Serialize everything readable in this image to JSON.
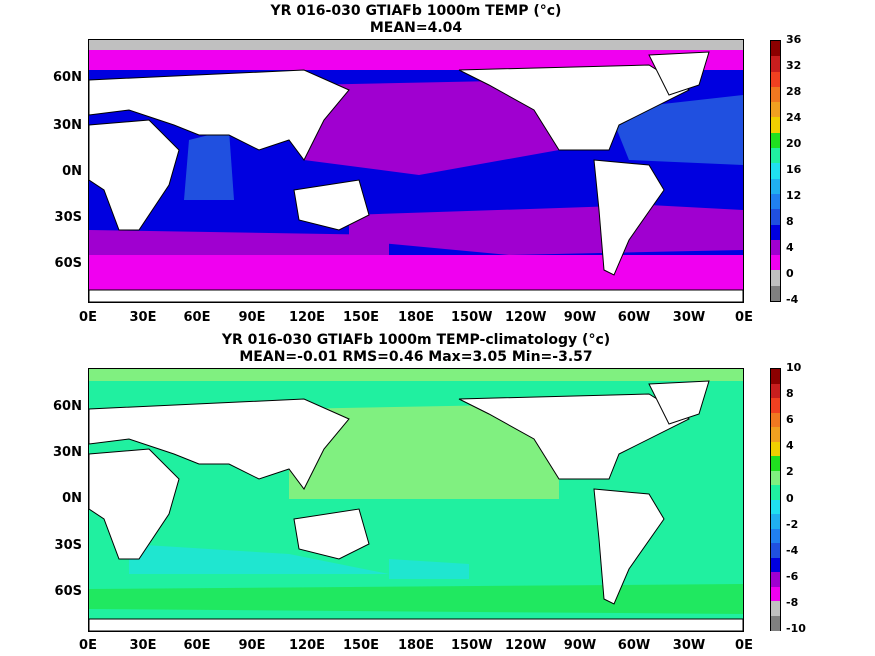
{
  "panels": [
    {
      "title_line1": "YR 016-030 GTIAFb 1000m TEMP (°c)",
      "title_line2": "MEAN=4.04",
      "colorbar": {
        "labels": [
          "36",
          "32",
          "28",
          "24",
          "20",
          "16",
          "12",
          "8",
          "4",
          "0",
          "-4"
        ],
        "colors": [
          "#8b0000",
          "#c81e1e",
          "#f04020",
          "#f07820",
          "#f0a020",
          "#f0d000",
          "#20e020",
          "#20f0a0",
          "#20e0f0",
          "#20b0f0",
          "#2080f0",
          "#2050e0",
          "#0000e0",
          "#a000d0",
          "#f000f0",
          "#c0c0c0",
          "#808080"
        ]
      }
    },
    {
      "title_line1": "YR 016-030 GTIAFb 1000m TEMP-climatology (°c)",
      "title_line2": "MEAN=-0.01   RMS=0.46   Max=3.05   Min=-3.57",
      "colorbar": {
        "labels": [
          "10",
          "8",
          "6",
          "4",
          "2",
          "0",
          "-2",
          "-4",
          "-6",
          "-8",
          "-10"
        ],
        "colors": [
          "#8b0000",
          "#c81e1e",
          "#f04020",
          "#f07820",
          "#f0a020",
          "#f0d000",
          "#20e020",
          "#80f080",
          "#20f0a0",
          "#20e0f0",
          "#20b0f0",
          "#2080f0",
          "#2050e0",
          "#0000e0",
          "#a000d0",
          "#f000f0",
          "#c0c0c0",
          "#808080"
        ]
      }
    }
  ],
  "y_tick_labels": [
    "60N",
    "30N",
    "0N",
    "30S",
    "60S"
  ],
  "x_tick_labels": [
    "0E",
    "30E",
    "60E",
    "90E",
    "120E",
    "150E",
    "180E",
    "150W",
    "120W",
    "90W",
    "60W",
    "30W",
    "0E"
  ]
}
